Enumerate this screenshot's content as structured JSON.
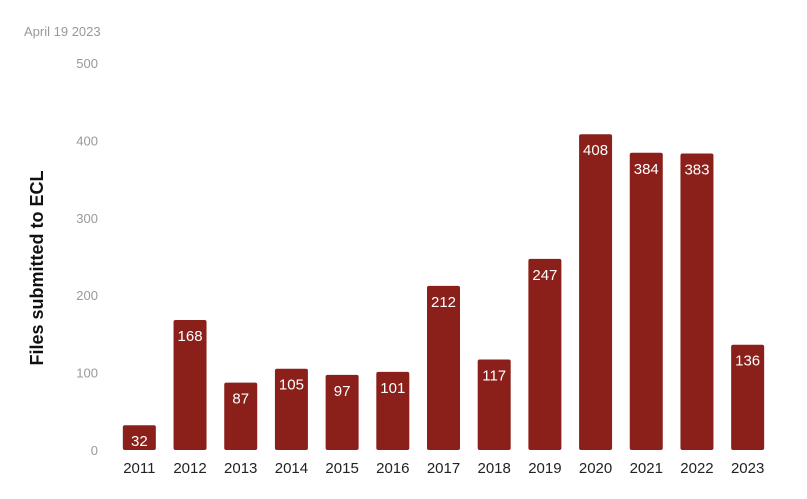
{
  "date_label": "April 19 2023",
  "chart_data": {
    "type": "bar",
    "title": "",
    "xlabel": "",
    "ylabel": "Files submitted to ECL",
    "ylim": [
      0,
      500
    ],
    "yticks": [
      0,
      100,
      200,
      300,
      400,
      500
    ],
    "categories": [
      "2011",
      "2012",
      "2013",
      "2014",
      "2015",
      "2016",
      "2017",
      "2018",
      "2019",
      "2020",
      "2021",
      "2022",
      "2023"
    ],
    "values": [
      32,
      168,
      87,
      105,
      97,
      101,
      212,
      117,
      247,
      408,
      384,
      383,
      136
    ],
    "bar_color": "#8b201b",
    "grid": false,
    "legend": "none"
  }
}
